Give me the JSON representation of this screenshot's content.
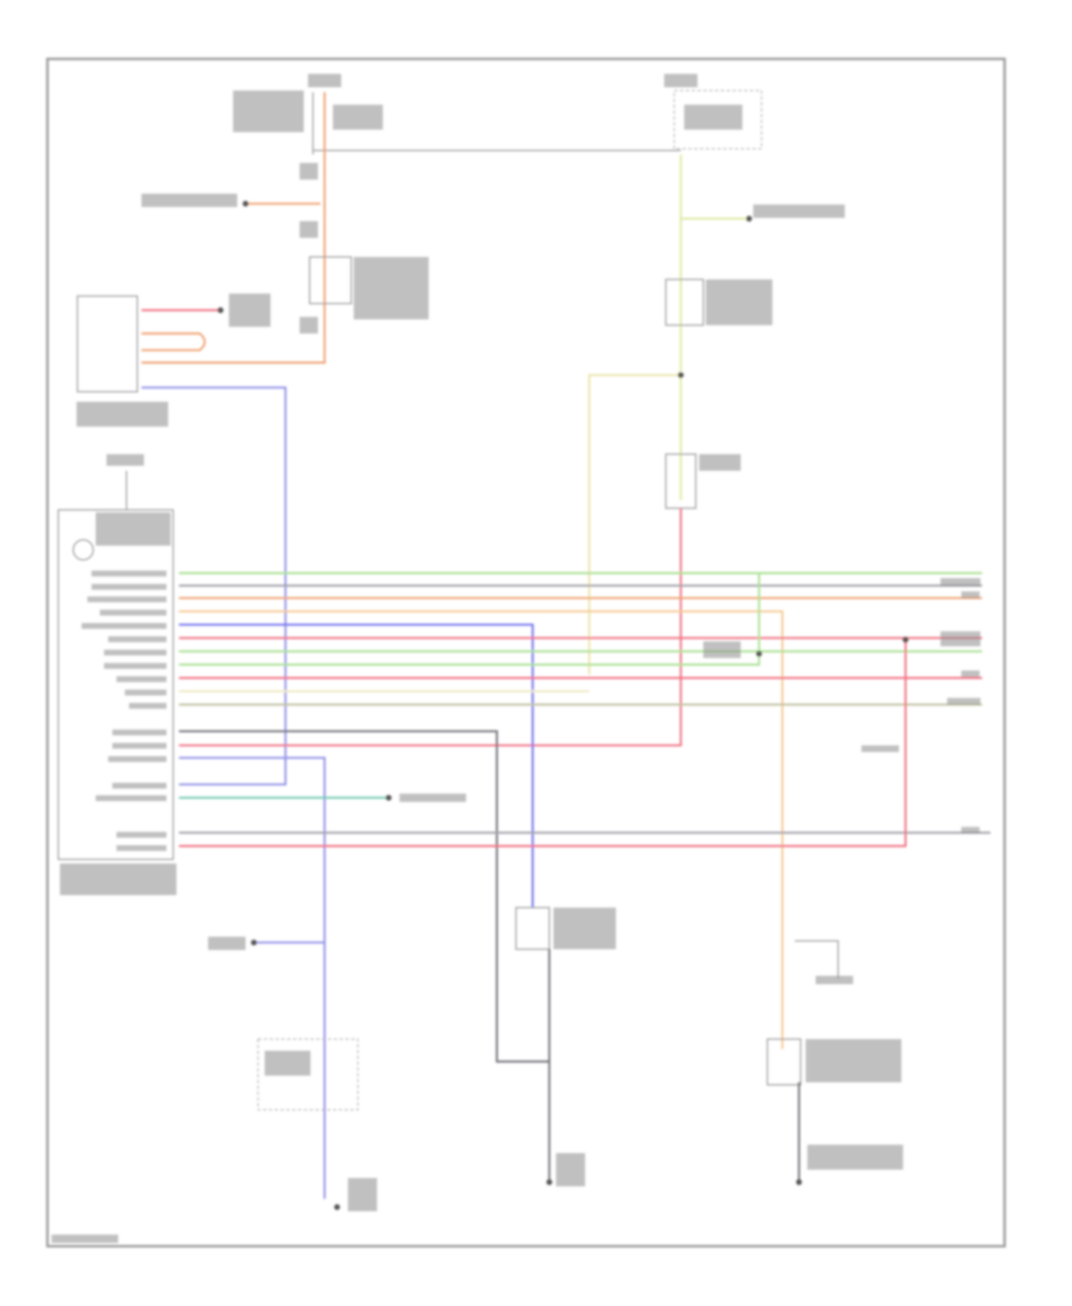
{
  "diagram": {
    "type": "wiring-diagram",
    "text_legible": false,
    "wire_colors": {
      "orange": "#f0a070",
      "yellow_green": "#dfe9a0",
      "yellow": "#ece6a8",
      "red": "#f07080",
      "violet": "#9090e8",
      "blue": "#7070f0",
      "green": "#a8e090",
      "gray": "#a0a0a8",
      "light_orange": "#f5c890",
      "pale_yellow": "#efe9c0",
      "olive": "#c0c0a0",
      "dark_gray": "#707078",
      "teal": "#70c8b0",
      "border": "#9c9c9c"
    }
  }
}
